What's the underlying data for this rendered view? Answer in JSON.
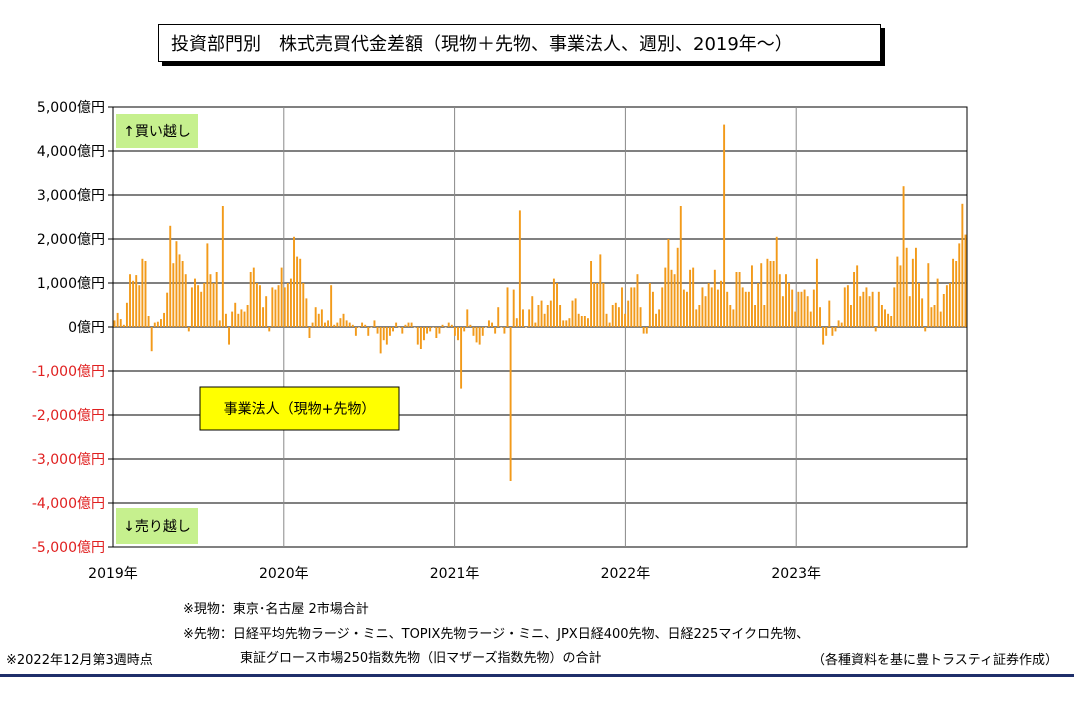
{
  "title": "投資部門別　株式売買代金差額（現物＋先物、事業法人、週別、2019年～）",
  "chart_data": {
    "type": "bar",
    "x_ticks": [
      "2019年",
      "2020年",
      "2021年",
      "2022年",
      "2023年"
    ],
    "y_ticks": [
      "5,000億円",
      "4,000億円",
      "3,000億円",
      "2,000億円",
      "1,000億円",
      "0億円",
      "-1,000億円",
      "-2,000億円",
      "-3,000億円",
      "-4,000億円",
      "-5,000億円"
    ],
    "ylim": [
      -5000,
      5000
    ],
    "y_unit": "億円",
    "grid": true,
    "series": [
      {
        "name": "事業法人（現物+先物）",
        "color": "#f29a1a",
        "values": [
          150,
          320,
          180,
          50,
          550,
          1200,
          1050,
          1180,
          950,
          1550,
          1500,
          250,
          -550,
          100,
          120,
          180,
          320,
          780,
          2300,
          1450,
          1950,
          1650,
          1500,
          1200,
          -100,
          900,
          1100,
          950,
          800,
          1000,
          1900,
          1200,
          1000,
          1250,
          150,
          2750,
          300,
          -400,
          350,
          550,
          300,
          400,
          350,
          500,
          1250,
          1350,
          1000,
          950,
          450,
          700,
          -100,
          900,
          850,
          950,
          1350,
          900,
          1000,
          1100,
          2050,
          1600,
          1550,
          1000,
          650,
          -250,
          100,
          450,
          300,
          400,
          100,
          150,
          950,
          50,
          100,
          200,
          300,
          150,
          100,
          50,
          -200,
          0,
          100,
          50,
          -200,
          0,
          150,
          -150,
          -600,
          -300,
          -400,
          -200,
          -100,
          100,
          0,
          -150,
          50,
          100,
          100,
          0,
          -400,
          -500,
          -300,
          -150,
          -100,
          0,
          -250,
          -150,
          50,
          0,
          100,
          50,
          -200,
          -300,
          -1400,
          -100,
          400,
          50,
          -200,
          -350,
          -400,
          -200,
          0,
          150,
          100,
          -150,
          450,
          0,
          -150,
          900,
          -3500,
          850,
          200,
          2650,
          400,
          0,
          400,
          700,
          100,
          500,
          600,
          300,
          500,
          600,
          1100,
          1000,
          500,
          150,
          150,
          200,
          600,
          650,
          300,
          250,
          250,
          200,
          1500,
          1000,
          1000,
          1650,
          1000,
          300,
          100,
          500,
          550,
          450,
          900,
          300,
          600,
          900,
          900,
          1200,
          450,
          -150,
          -150,
          1000,
          800,
          300,
          400,
          900,
          1350,
          2000,
          1300,
          1200,
          1800,
          2750,
          850,
          800,
          1300,
          1350,
          400,
          500,
          900,
          700,
          1000,
          900,
          1300,
          850,
          1050,
          4600,
          800,
          500,
          400,
          1250,
          1250,
          900,
          800,
          800,
          1400,
          500,
          1000,
          1450,
          500,
          1550,
          1500,
          1500,
          2050,
          1200,
          700,
          1200,
          1000,
          850,
          350,
          800,
          800,
          850,
          700,
          350,
          850,
          1550,
          450,
          -400,
          -200,
          600,
          -200,
          -100,
          150,
          100,
          900,
          950,
          500,
          1250,
          1400,
          700,
          800,
          900,
          700,
          800,
          -100,
          800,
          500,
          400,
          300,
          250,
          900,
          1600,
          1400,
          3200,
          1800,
          700,
          1550,
          1800,
          1000,
          650,
          -100,
          1450,
          450,
          500,
          1100,
          350,
          750,
          950,
          1000,
          1550,
          1500,
          1900,
          2800,
          2100
        ]
      }
    ],
    "annotations": {
      "buy": "↑買い越し",
      "sell": "↓売り越し",
      "legend": "事業法人（現物+先物）"
    }
  },
  "notes": {
    "note1": "※現物：東京･名古屋 2市場合計",
    "note2a": "※先物：日経平均先物ラージ・ミニ、TOPIX先物ラージ・ミニ、JPX日経400先物、日経225マイクロ先物、",
    "note2b": "東証グロース市場250指数先物（旧マザーズ指数先物）の合計",
    "as_of": "※2022年12月第3週時点",
    "source": "（各種資料を基に豊トラスティ証券作成）"
  },
  "colors": {
    "bar": "#f29a1a",
    "negative_label": "#e02020",
    "buy_box": "#c6f08e",
    "legend_box": "#ffff00",
    "bottom_line": "#1f2f6a"
  }
}
